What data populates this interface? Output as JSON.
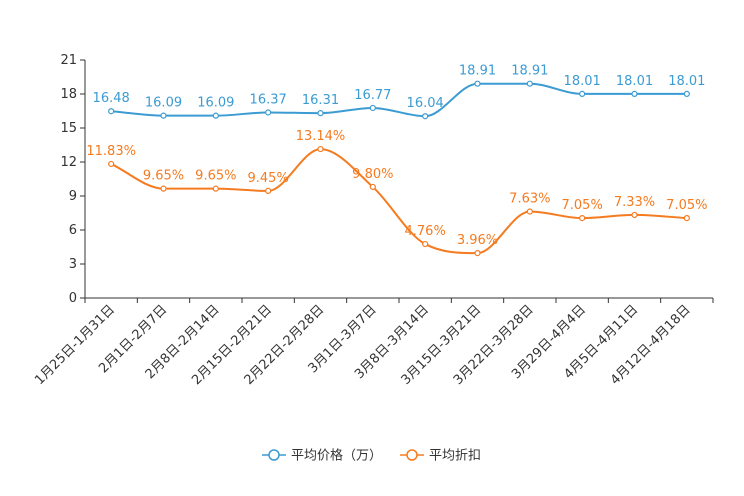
{
  "chart_data": {
    "type": "line",
    "categories": [
      "1月25日-1月31日",
      "2月1日-2月7日",
      "2月8日-2月14日",
      "2月15日-2月21日",
      "2月22日-2月28日",
      "3月1日-3月7日",
      "3月8日-3月14日",
      "3月15日-3月21日",
      "3月22日-3月28日",
      "3月29日-4月4日",
      "4月5日-4月11日",
      "4月12日-4月18日"
    ],
    "ylim": [
      0,
      21
    ],
    "yticks": [
      0,
      3,
      6,
      9,
      12,
      15,
      18,
      21
    ],
    "legend_position": "bottom-center",
    "series": [
      {
        "name": "平均价格（万）",
        "color": "#3b9bd2",
        "values": [
          16.48,
          16.09,
          16.09,
          16.37,
          16.31,
          16.77,
          16.04,
          18.91,
          18.91,
          18.01,
          18.01,
          18.01
        ],
        "labels": [
          "16.48",
          "16.09",
          "16.09",
          "16.37",
          "16.31",
          "16.77",
          "16.04",
          "18.91",
          "18.91",
          "18.01",
          "18.01",
          "18.01"
        ]
      },
      {
        "name": "平均折扣",
        "color": "#f57b20",
        "values": [
          11.83,
          9.65,
          9.65,
          9.45,
          13.14,
          9.8,
          4.76,
          3.96,
          7.63,
          7.05,
          7.33,
          7.05
        ],
        "labels": [
          "11.83%",
          "9.65%",
          "9.65%",
          "9.45%",
          "13.14%",
          "9.80%",
          "4.76%",
          "3.96%",
          "7.63%",
          "7.05%",
          "7.33%",
          "7.05%"
        ]
      }
    ]
  }
}
